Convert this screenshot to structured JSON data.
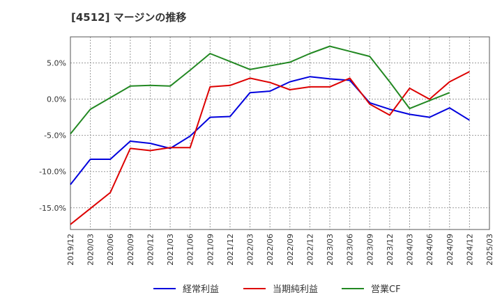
{
  "chart_data": {
    "type": "line",
    "title": "[4512]  マージンの推移",
    "x": [
      "2019/12",
      "2020/03",
      "2020/06",
      "2020/09",
      "2020/12",
      "2021/03",
      "2021/06",
      "2021/09",
      "2021/12",
      "2022/03",
      "2022/06",
      "2022/09",
      "2022/12",
      "2023/03",
      "2023/06",
      "2023/09",
      "2023/12",
      "2024/03",
      "2024/06",
      "2024/09",
      "2024/12",
      "2025/03"
    ],
    "ylim": [
      -18,
      8.6
    ],
    "y_ticks": [
      5,
      0,
      -5,
      -10,
      -15
    ],
    "y_tick_labels": [
      "5.0%",
      "0.0%",
      "-5.0%",
      "-10.0%",
      "-15.0%"
    ],
    "grid": true,
    "legend_position": "bottom",
    "series": [
      {
        "name": "経常利益",
        "color": "#0000dd",
        "values": [
          -11.8,
          -8.3,
          -8.3,
          -5.8,
          -6.1,
          -6.8,
          -5.1,
          -2.5,
          -2.4,
          0.9,
          1.1,
          2.4,
          3.1,
          2.8,
          2.6,
          -0.5,
          -1.4,
          -2.1,
          -2.5,
          -1.2,
          -2.9,
          null
        ]
      },
      {
        "name": "当期純利益",
        "color": "#dd0000",
        "values": [
          -17.3,
          -15.1,
          -12.9,
          -6.8,
          -7.1,
          -6.7,
          -6.7,
          1.7,
          1.9,
          2.9,
          2.3,
          1.3,
          1.7,
          1.7,
          2.9,
          -0.7,
          -2.2,
          1.5,
          0.0,
          2.4,
          3.8,
          null
        ]
      },
      {
        "name": "営業CF",
        "color": "#228822",
        "values": [
          -4.8,
          -1.4,
          0.2,
          1.8,
          1.9,
          1.8,
          4.0,
          6.3,
          5.2,
          4.1,
          4.6,
          5.1,
          6.3,
          7.3,
          6.6,
          5.9,
          2.4,
          -1.3,
          -0.2,
          0.9,
          null,
          null
        ]
      }
    ]
  }
}
